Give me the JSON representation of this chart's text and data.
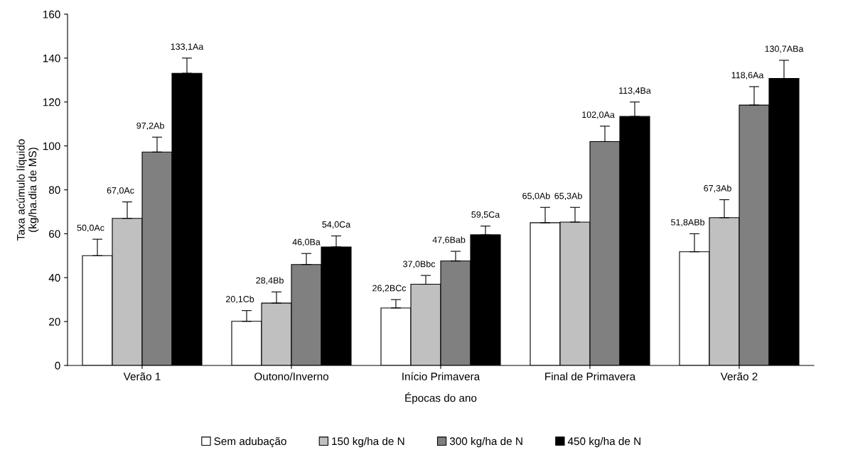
{
  "chart_data": {
    "type": "bar",
    "xlabel": "Épocas do ano",
    "ylabel": "Taxa acúmulo líquido\n(kg/ha.dia de MS)",
    "categories": [
      "Verão 1",
      "Outono/Inverno",
      "Início Primavera",
      "Final de Primavera",
      "Verão 2"
    ],
    "ylim": [
      0,
      160
    ],
    "yticks": [
      0,
      20,
      40,
      60,
      80,
      100,
      120,
      140,
      160
    ],
    "grid": false,
    "legend": "bottom",
    "series": [
      {
        "name": "Sem adubação",
        "color": "#ffffff",
        "values": [
          50.0,
          20.1,
          26.2,
          65.0,
          51.8
        ],
        "errors": [
          [
            50.0,
            57.5
          ],
          [
            20.1,
            25
          ],
          [
            26.2,
            30
          ],
          [
            65.0,
            72
          ],
          [
            51.8,
            60
          ]
        ],
        "value_labels": [
          "50,0Ac",
          "20,1Cb",
          "26,2BCc",
          "65,0Ab",
          "51,8ABb"
        ]
      },
      {
        "name": "150 kg/ha de N",
        "color": "#c0c0c0",
        "values": [
          67.0,
          28.4,
          37.0,
          65.3,
          67.3
        ],
        "errors": [
          [
            67.0,
            74.5
          ],
          [
            28.4,
            33.5
          ],
          [
            37.0,
            41
          ],
          [
            65.3,
            72
          ],
          [
            67.3,
            75.5
          ]
        ],
        "value_labels": [
          "67,0Ac",
          "28,4Bb",
          "37,0Bbc",
          "65,3Ab",
          "67,3Ab"
        ]
      },
      {
        "name": "300 kg/ha de N",
        "color": "#808080",
        "values": [
          97.2,
          46.0,
          47.6,
          102.0,
          118.6
        ],
        "errors": [
          [
            97.2,
            104
          ],
          [
            46.0,
            51
          ],
          [
            47.6,
            52
          ],
          [
            102.0,
            109
          ],
          [
            118.6,
            127
          ]
        ],
        "value_labels": [
          "97,2Ab",
          "46,0Ba",
          "47,6Bab",
          "102,0Aa",
          "118,6Aa"
        ]
      },
      {
        "name": "450 kg/ha de N",
        "color": "#000000",
        "values": [
          133.1,
          54.0,
          59.5,
          113.4,
          130.7
        ],
        "errors": [
          [
            133.1,
            140
          ],
          [
            54.0,
            59
          ],
          [
            59.5,
            63.5
          ],
          [
            113.4,
            120
          ],
          [
            130.7,
            139
          ]
        ],
        "value_labels": [
          "133,1Aa",
          "54,0Ca",
          "59,5Ca",
          "113,4Ba",
          "130,7ABa"
        ]
      }
    ]
  }
}
